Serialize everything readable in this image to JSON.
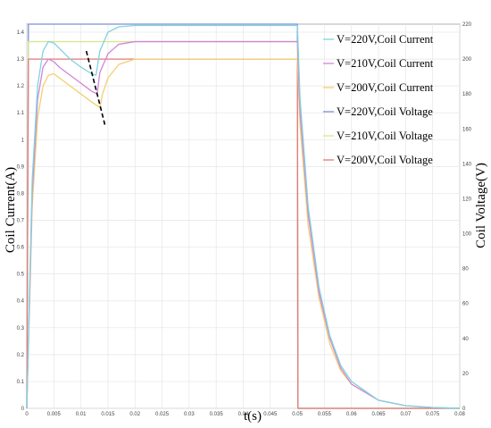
{
  "chart_data": {
    "type": "line",
    "xlabel": "t(s)",
    "ylabel_left": "Coil Current(A)",
    "ylabel_right": "Coil Voltage(V)",
    "xlim": [
      0,
      0.08
    ],
    "ylim_left": [
      0,
      1.43
    ],
    "ylim_right": [
      0,
      220
    ],
    "x_ticks": [
      0,
      0.005,
      0.01,
      0.015,
      0.02,
      0.025,
      0.03,
      0.035,
      0.04,
      0.045,
      0.05,
      0.055,
      0.06,
      0.065,
      0.07,
      0.075,
      0.08
    ],
    "x_tick_labels": [
      "0",
      "0.005",
      "0.01",
      "0.015",
      "0.02",
      "0.025",
      "0.03",
      "0.035",
      "0.04",
      "0.045",
      "0.05",
      "0.055",
      "0.06",
      "0.065",
      "0.07",
      "0.075",
      "0.08"
    ],
    "y_left_ticks": [
      0,
      0.1,
      0.2,
      0.3,
      0.4,
      0.5,
      0.6,
      0.7,
      0.8,
      0.9,
      1,
      1.1,
      1.2,
      1.3,
      1.4
    ],
    "y_left_tick_labels": [
      "0",
      "0.1",
      "0.2",
      "0.3",
      "0.4",
      "0.5",
      "0.6",
      "0.7",
      "0.8",
      "0.9",
      "1",
      "1.1",
      "1.2",
      "1.3",
      "1.4"
    ],
    "y_right_ticks": [
      0,
      20,
      40,
      60,
      80,
      100,
      120,
      140,
      160,
      180,
      200,
      220
    ],
    "y_right_tick_labels": [
      "0",
      "20",
      "40",
      "60",
      "80",
      "100",
      "120",
      "140",
      "160",
      "180",
      "200",
      "220"
    ],
    "grid": true,
    "legend_position": "top-right",
    "series": [
      {
        "name": "V=220V,Coil Current",
        "axis": "left",
        "color": "#7fd3e0",
        "x": [
          0,
          0.001,
          0.002,
          0.003,
          0.004,
          0.005,
          0.006,
          0.008,
          0.01,
          0.012,
          0.0128,
          0.0135,
          0.015,
          0.017,
          0.02,
          0.025,
          0.03,
          0.04,
          0.05,
          0.0505,
          0.052,
          0.054,
          0.056,
          0.058,
          0.06,
          0.065,
          0.07,
          0.075,
          0.08
        ],
        "y": [
          0,
          0.85,
          1.2,
          1.33,
          1.365,
          1.36,
          1.34,
          1.3,
          1.27,
          1.245,
          1.24,
          1.33,
          1.4,
          1.42,
          1.425,
          1.425,
          1.425,
          1.425,
          1.425,
          1.15,
          0.75,
          0.45,
          0.27,
          0.16,
          0.1,
          0.03,
          0.01,
          0.003,
          0
        ]
      },
      {
        "name": "V=210V,Coil Current",
        "axis": "left",
        "color": "#d484d8",
        "x": [
          0,
          0.001,
          0.002,
          0.003,
          0.004,
          0.005,
          0.006,
          0.008,
          0.01,
          0.012,
          0.013,
          0.0135,
          0.015,
          0.017,
          0.02,
          0.025,
          0.03,
          0.04,
          0.05,
          0.0505,
          0.052,
          0.054,
          0.056,
          0.058,
          0.06,
          0.065,
          0.07,
          0.075,
          0.08
        ],
        "y": [
          0,
          0.8,
          1.15,
          1.27,
          1.3,
          1.29,
          1.27,
          1.24,
          1.21,
          1.18,
          1.17,
          1.25,
          1.32,
          1.355,
          1.365,
          1.365,
          1.365,
          1.365,
          1.365,
          1.1,
          0.72,
          0.43,
          0.26,
          0.15,
          0.09,
          0.03,
          0.01,
          0.003,
          0
        ]
      },
      {
        "name": "V=200V,Coil Current",
        "axis": "left",
        "color": "#f2d070",
        "x": [
          0,
          0.001,
          0.002,
          0.003,
          0.004,
          0.005,
          0.006,
          0.008,
          0.01,
          0.012,
          0.0135,
          0.014,
          0.015,
          0.017,
          0.02,
          0.025,
          0.03,
          0.04,
          0.05,
          0.0505,
          0.052,
          0.054,
          0.056,
          0.058,
          0.06,
          0.065,
          0.07,
          0.075,
          0.08
        ],
        "y": [
          0,
          0.75,
          1.08,
          1.2,
          1.24,
          1.245,
          1.23,
          1.2,
          1.17,
          1.14,
          1.12,
          1.17,
          1.23,
          1.28,
          1.3,
          1.3,
          1.3,
          1.3,
          1.3,
          1.05,
          0.68,
          0.41,
          0.24,
          0.14,
          0.09,
          0.03,
          0.01,
          0.003,
          0
        ]
      },
      {
        "name": "V=220V,Coil Voltage",
        "axis": "right",
        "color": "#7b8fd6",
        "x": [
          0,
          0.0003,
          0.05,
          0.0501,
          0.08
        ],
        "y": [
          0,
          220,
          220,
          0,
          0
        ]
      },
      {
        "name": "V=210V,Coil Voltage",
        "axis": "right",
        "color": "#d6e890",
        "x": [
          0,
          0.0003,
          0.05,
          0.0501,
          0.08
        ],
        "y": [
          0,
          210,
          210,
          0,
          0
        ]
      },
      {
        "name": "V=200V,Coil Voltage",
        "axis": "right",
        "color": "#e07a7a",
        "x": [
          0,
          0.0003,
          0.05,
          0.0501,
          0.08
        ],
        "y": [
          0,
          200,
          200,
          0,
          0
        ]
      }
    ],
    "annotation": {
      "type": "dashed-line",
      "x": [
        0.011,
        0.0145
      ],
      "y_left": [
        1.33,
        1.05
      ],
      "color": "#000000"
    }
  }
}
